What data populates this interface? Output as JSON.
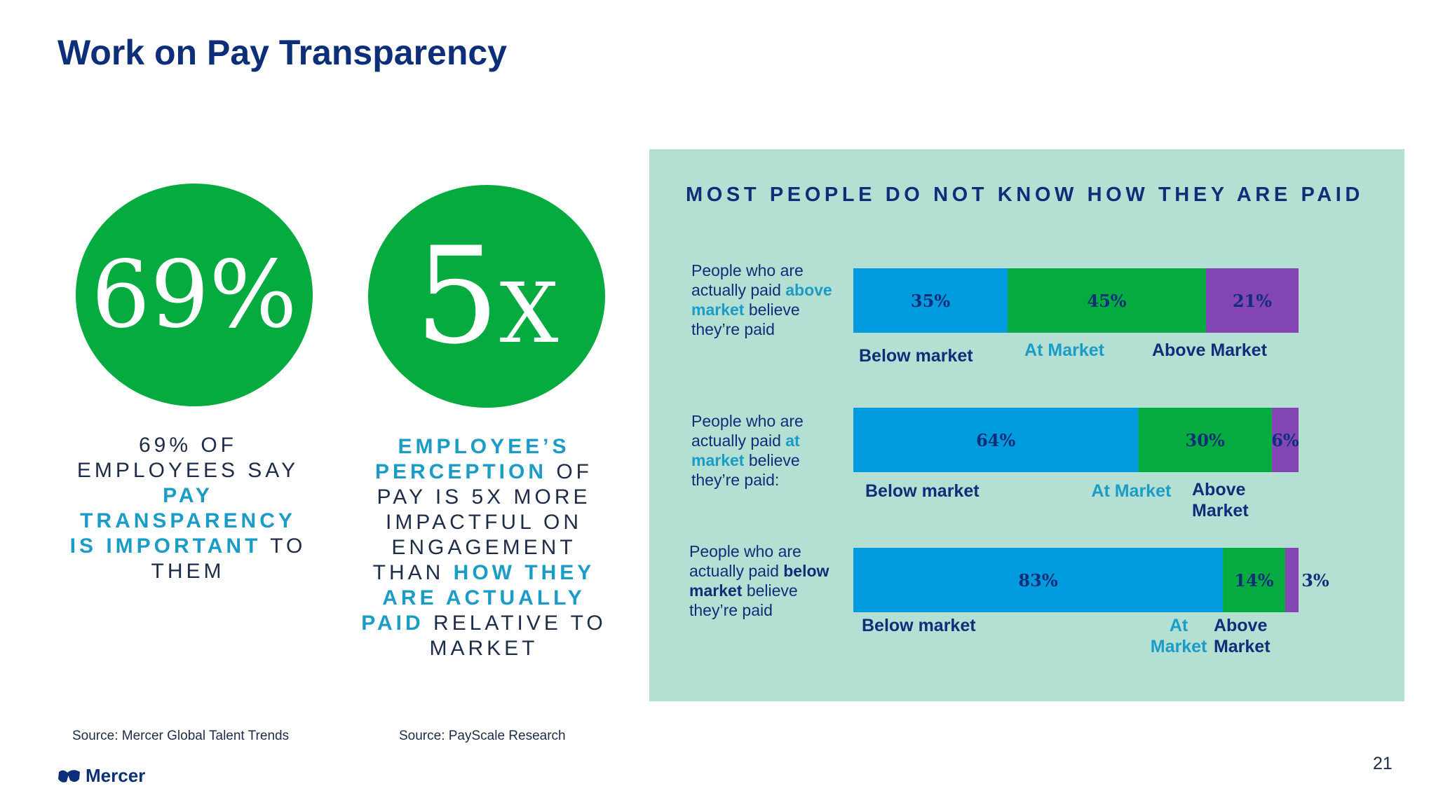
{
  "page": {
    "title": "Work on Pay Transparency",
    "page_number": "21",
    "logo_text": "Mercer",
    "logo_icon": "mercer-logo-icon"
  },
  "stats": [
    {
      "value": "69%",
      "caption_parts": [
        {
          "text": "69% OF EMPLOYEES SAY ",
          "highlight": false
        },
        {
          "text": "PAY TRANSPARENCY IS IMPORTANT",
          "highlight": true
        },
        {
          "text": " TO THEM",
          "highlight": false
        }
      ],
      "source": "Source: Mercer Global Talent Trends"
    },
    {
      "value_big": "5",
      "value_small": "X",
      "caption_parts": [
        {
          "text": "EMPLOYEE’S PERCEPTION",
          "highlight": true
        },
        {
          "text": " OF PAY IS 5X MORE IMPACTFUL ON ENGAGEMENT THAN ",
          "highlight": false
        },
        {
          "text": "HOW THEY ARE ACTUALLY PAID",
          "highlight": true
        },
        {
          "text": " RELATIVE TO MARKET",
          "highlight": false
        }
      ],
      "source": "Source: PayScale Research"
    }
  ],
  "colors": {
    "title": "#0d2f7a",
    "circle": "#05ab3f",
    "highlight": "#1b9cc7",
    "panel": "#b4dfd3",
    "below_market": "#009ade",
    "at_market": "#05ab3f",
    "above_market": "#8346b3"
  },
  "chart_data": {
    "type": "bar",
    "orientation": "horizontal",
    "stacked": true,
    "title": "MOST PEOPLE DO NOT KNOW HOW THEY ARE PAID",
    "categories": [
      "People who are actually paid above market believe they’re paid:",
      "People who are actually paid at market believe they’re paid:",
      "People who are actually paid below market believe they’re paid:"
    ],
    "row_labels": [
      {
        "pre": "People who are actually paid ",
        "emph": "above market",
        "post": " believe they’re paid",
        "emph_color": "#1b9cc7"
      },
      {
        "pre": "People who are actually paid ",
        "emph": "at market",
        "post": " believe they’re paid:",
        "emph_color": "#1b9cc7"
      },
      {
        "pre": "People who are actually paid ",
        "emph": "below market",
        "post": " believe they’re paid",
        "emph_color": "#0d2f7a"
      }
    ],
    "series": [
      {
        "name": "Below market",
        "values": [
          35,
          64,
          83
        ],
        "labels": [
          "35%",
          "64%",
          "83%"
        ],
        "color": "#009ade"
      },
      {
        "name": "At Market",
        "values": [
          45,
          30,
          14
        ],
        "labels": [
          "45%",
          "30%",
          "14%"
        ],
        "color": "#05ab3f"
      },
      {
        "name": "Above Market",
        "values": [
          21,
          6,
          3
        ],
        "labels": [
          "21%",
          "6%",
          "3%"
        ],
        "color": "#8346b3"
      }
    ],
    "category_labels": [
      [
        "Below market",
        "At Market",
        "Above Market"
      ],
      [
        "Below market",
        "At Market",
        "Above Market"
      ],
      [
        "Below market",
        "At Market",
        "Above Market"
      ]
    ],
    "xlim": [
      0,
      100
    ]
  }
}
